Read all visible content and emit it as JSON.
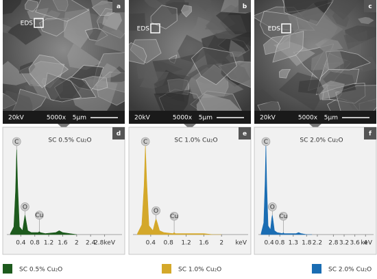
{
  "sem_panels": [
    {
      "label": "a",
      "marker": "EDS",
      "voltage": "20kV",
      "magnification": "5000x",
      "scale": "5µm"
    },
    {
      "label": "b",
      "marker": "EDS",
      "voltage": "20kV",
      "magnification": "5000x",
      "scale": "5µm"
    },
    {
      "label": "c",
      "marker": "EDS",
      "voltage": "20kV",
      "magnification": "5000x",
      "scale": "5µm"
    }
  ],
  "chart_data": [
    {
      "type": "area",
      "panel_label": "d",
      "title": "SC 0.5% Cu₂O",
      "x": [
        0.1,
        0.2,
        0.25,
        0.28,
        0.31,
        0.36,
        0.45,
        0.5,
        0.52,
        0.55,
        0.6,
        0.7,
        0.9,
        0.93,
        0.96,
        1.1,
        1.4,
        1.5,
        1.6,
        1.8,
        2.0
      ],
      "series": [
        {
          "name": "SC 0.5% Cu₂O",
          "color": "#1d5a1d",
          "values": [
            1,
            8,
            45,
            87,
            50,
            8,
            4,
            16,
            20,
            14,
            4,
            2,
            2,
            3,
            2,
            1,
            2,
            4,
            2,
            1,
            0
          ]
        }
      ],
      "annotations": [
        {
          "text": "C",
          "x": 0.28
        },
        {
          "text": "O",
          "x": 0.52
        },
        {
          "text": "Cu",
          "x": 0.93
        }
      ],
      "xlim": [
        0,
        3.3
      ],
      "ylim": [
        0,
        100
      ],
      "xticks": [
        0.4,
        0.8,
        1.2,
        1.6,
        2.0,
        2.4,
        {
          "value": 2.8,
          "label": "2.8keV"
        }
      ]
    },
    {
      "type": "area",
      "panel_label": "e",
      "title": "SC 1.0% Cu₂O",
      "x": [
        0.1,
        0.2,
        0.25,
        0.28,
        0.31,
        0.36,
        0.45,
        0.5,
        0.52,
        0.55,
        0.6,
        0.7,
        0.9,
        0.93,
        0.96,
        1.1,
        1.4,
        1.5,
        1.6,
        1.8,
        2.0
      ],
      "series": [
        {
          "name": "SC 1.0% Cu₂O",
          "color": "#d4a82a",
          "values": [
            1,
            10,
            50,
            91,
            55,
            9,
            4,
            13,
            16,
            12,
            4,
            2,
            1,
            2,
            1,
            1,
            1,
            1,
            1,
            0,
            0
          ]
        }
      ],
      "annotations": [
        {
          "text": "C",
          "x": 0.28
        },
        {
          "text": "O",
          "x": 0.52
        },
        {
          "text": "Cu",
          "x": 0.93
        }
      ],
      "xlim": [
        0,
        2.6
      ],
      "ylim": [
        0,
        100
      ],
      "xticks": [
        0.4,
        0.8,
        1.2,
        1.6,
        2.0
      ],
      "x_unit": "keV"
    },
    {
      "type": "area",
      "panel_label": "f",
      "title": "SC 2.0% Cu₂O",
      "x": [
        0.1,
        0.2,
        0.25,
        0.28,
        0.31,
        0.36,
        0.45,
        0.5,
        0.52,
        0.55,
        0.6,
        0.7,
        0.9,
        0.93,
        0.96,
        1.1,
        1.4,
        1.5,
        1.6,
        1.8,
        2.0
      ],
      "series": [
        {
          "name": "SC 2.0% Cu₂O",
          "color": "#1a6db3",
          "values": [
            1,
            12,
            55,
            93,
            52,
            9,
            5,
            17,
            20,
            14,
            4,
            2,
            1,
            2,
            1,
            1,
            1,
            2,
            1,
            0,
            0
          ]
        }
      ],
      "annotations": [
        {
          "text": "C",
          "x": 0.28
        },
        {
          "text": "O",
          "x": 0.52
        },
        {
          "text": "Cu",
          "x": 0.93
        }
      ],
      "xlim": [
        0,
        4.3
      ],
      "ylim": [
        0,
        100
      ],
      "xticks": [
        0.4,
        0.8,
        1.3,
        1.8,
        2.2,
        2.8,
        3.2,
        3.6,
        4.0
      ],
      "x_unit": "keV"
    }
  ]
}
